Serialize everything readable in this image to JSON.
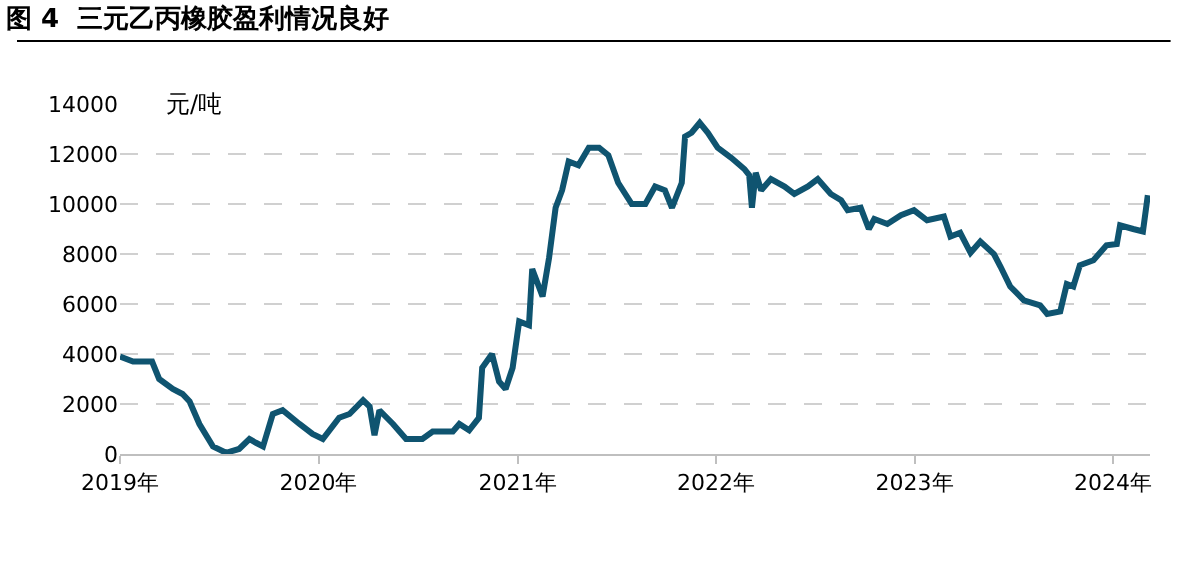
{
  "chart_data": {
    "type": "line",
    "title": "图 4  三元乙丙橡胶盈利情况良好",
    "ylabel": "元/吨",
    "x": [
      "2019-01-01",
      "2019-01-25",
      "2019-03-01",
      "2019-03-14",
      "2019-04-08",
      "2019-04-26",
      "2019-05-09",
      "2019-05-27",
      "2019-06-21",
      "2019-07-15",
      "2019-08-08",
      "2019-08-27",
      "2019-09-08",
      "2019-09-21",
      "2019-10-09",
      "2019-10-27",
      "2019-11-27",
      "2019-12-21",
      "2020-01-09",
      "2020-02-08",
      "2020-02-27",
      "2020-03-23",
      "2020-04-04",
      "2020-04-13",
      "2020-04-22",
      "2020-05-17",
      "2020-06-10",
      "2020-07-10",
      "2020-07-29",
      "2020-09-04",
      "2020-09-16",
      "2020-10-04",
      "2020-10-22",
      "2020-10-28",
      "2020-11-15",
      "2020-11-28",
      "2020-12-10",
      "2020-12-23",
      "2021-01-04",
      "2021-01-22",
      "2021-01-28",
      "2021-02-16",
      "2021-02-28",
      "2021-03-12",
      "2021-03-24",
      "2021-04-05",
      "2021-04-23",
      "2021-05-12",
      "2021-05-31",
      "2021-06-17",
      "2021-07-05",
      "2021-07-30",
      "2021-08-24",
      "2021-09-11",
      "2021-09-29",
      "2021-10-12",
      "2021-10-30",
      "2021-11-05",
      "2021-11-17",
      "2021-12-02",
      "2021-12-17",
      "2022-01-04",
      "2022-01-29",
      "2022-02-22",
      "2022-03-03",
      "2022-03-08",
      "2022-03-15",
      "2022-03-25",
      "2022-04-12",
      "2022-05-07",
      "2022-05-25",
      "2022-06-19",
      "2022-07-07",
      "2022-07-31",
      "2022-08-19",
      "2022-08-31",
      "2022-09-24",
      "2022-10-09",
      "2022-10-19",
      "2022-11-12",
      "2022-12-07",
      "2022-12-31",
      "2023-01-24",
      "2023-02-24",
      "2023-03-08",
      "2023-03-26",
      "2023-04-14",
      "2023-05-02",
      "2023-05-27",
      "2023-06-08",
      "2023-06-26",
      "2023-07-21",
      "2023-08-20",
      "2023-09-02",
      "2023-09-26",
      "2023-10-08",
      "2023-10-20",
      "2023-11-01",
      "2023-11-26",
      "2023-12-20",
      "2024-01-08",
      "2024-01-14",
      "2024-02-07",
      "2024-02-25",
      "2024-03-05"
    ],
    "series": [
      {
        "color": "#0f5470",
        "values": [
          3900,
          3700,
          3700,
          3000,
          2600,
          2400,
          2100,
          1200,
          300,
          50,
          200,
          600,
          450,
          300,
          1600,
          1750,
          1200,
          800,
          600,
          1450,
          1600,
          2150,
          1900,
          750,
          1750,
          1200,
          600,
          600,
          900,
          900,
          1200,
          950,
          1450,
          3450,
          4000,
          2900,
          2600,
          3450,
          5300,
          5150,
          7400,
          6300,
          7850,
          9850,
          10550,
          11700,
          11550,
          12250,
          12250,
          11950,
          10850,
          10000,
          10000,
          10700,
          10550,
          9850,
          10850,
          12700,
          12850,
          13250,
          12850,
          12250,
          11850,
          11400,
          11150,
          9850,
          11250,
          10550,
          11000,
          10700,
          10400,
          10700,
          11000,
          10400,
          10150,
          9750,
          9850,
          9000,
          9400,
          9200,
          9550,
          9750,
          9350,
          9500,
          8700,
          8850,
          8050,
          8500,
          8000,
          7500,
          6700,
          6150,
          5950,
          5600,
          5700,
          6800,
          6700,
          7550,
          7750,
          8350,
          8400,
          9150,
          9000,
          8900,
          10350
        ]
      }
    ],
    "xlim": [
      "2019-01-01",
      "2024-03-09"
    ],
    "xticks": [
      {
        "value": "2019-01-01",
        "label": "2019年"
      },
      {
        "value": "2020-01-01",
        "label": "2020年"
      },
      {
        "value": "2021-01-01",
        "label": "2021年"
      },
      {
        "value": "2022-01-01",
        "label": "2022年"
      },
      {
        "value": "2023-01-01",
        "label": "2023年"
      },
      {
        "value": "2024-01-01",
        "label": "2024年"
      }
    ],
    "ylim": [
      0,
      14000
    ],
    "yticks": [
      0,
      2000,
      4000,
      6000,
      8000,
      10000,
      12000,
      14000
    ],
    "grid": "y",
    "marker": "none",
    "line_style": "solid"
  }
}
